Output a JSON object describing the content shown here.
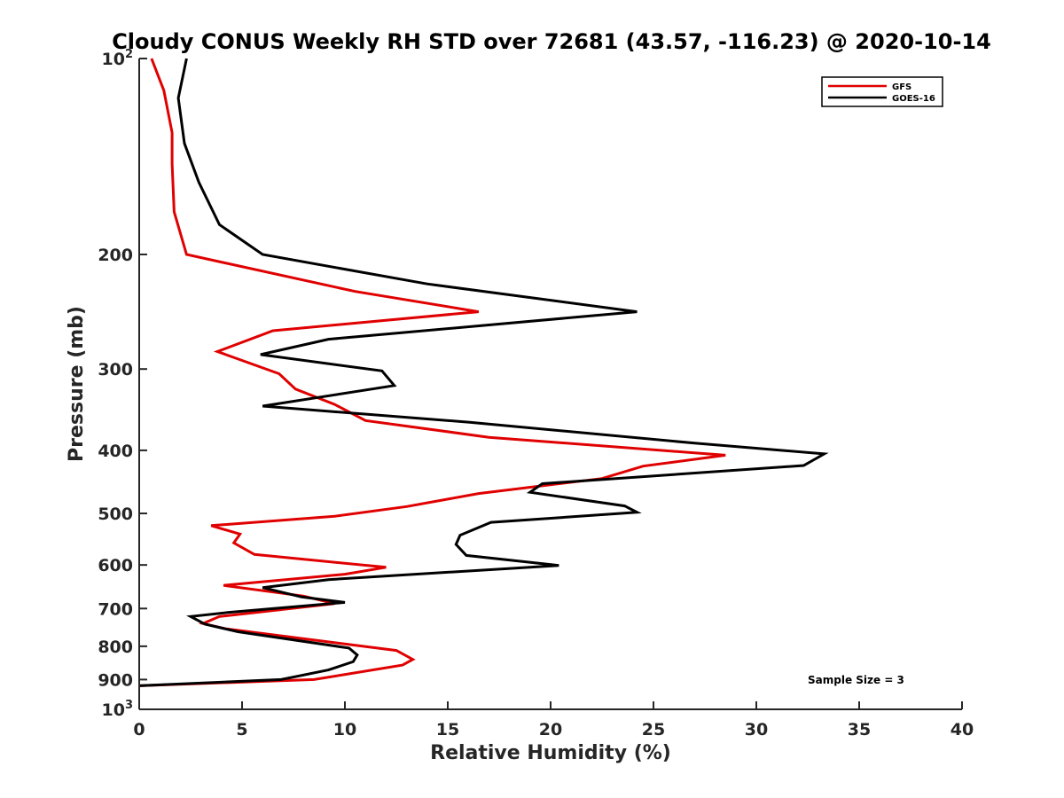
{
  "chart_data": {
    "type": "line",
    "title": "Cloudy CONUS Weekly RH STD over 72681 (43.57, -116.23) @ 2020-10-14",
    "xlabel": "Relative Humidity (%)",
    "ylabel": "Pressure (mb)",
    "xlim": [
      0,
      40
    ],
    "ylim": [
      100,
      1000
    ],
    "yscale": "log",
    "y_reversed": true,
    "grid": false,
    "legend_position": "top-right",
    "x_ticks": [
      {
        "value": 0,
        "label": "0"
      },
      {
        "value": 5,
        "label": "5"
      },
      {
        "value": 10,
        "label": "10"
      },
      {
        "value": 15,
        "label": "15"
      },
      {
        "value": 20,
        "label": "20"
      },
      {
        "value": 25,
        "label": "25"
      },
      {
        "value": 30,
        "label": "30"
      },
      {
        "value": 35,
        "label": "35"
      },
      {
        "value": 40,
        "label": "40"
      }
    ],
    "y_ticks": [
      {
        "value": 100,
        "base": "10",
        "exp": "2"
      },
      {
        "value": 200,
        "label": "200"
      },
      {
        "value": 300,
        "label": "300"
      },
      {
        "value": 400,
        "label": "400"
      },
      {
        "value": 500,
        "label": "500"
      },
      {
        "value": 600,
        "label": "600"
      },
      {
        "value": 700,
        "label": "700"
      },
      {
        "value": 800,
        "label": "800"
      },
      {
        "value": 900,
        "label": "900"
      },
      {
        "value": 1000,
        "base": "10",
        "exp": "3"
      }
    ],
    "series": [
      {
        "name": "GFS",
        "color": "#e00000",
        "points": [
          [
            0.6,
            100
          ],
          [
            1.2,
            112
          ],
          [
            1.6,
            130
          ],
          [
            1.6,
            145
          ],
          [
            1.7,
            172
          ],
          [
            2.3,
            200
          ],
          [
            10.5,
            228
          ],
          [
            16.5,
            245
          ],
          [
            6.5,
            262
          ],
          [
            3.8,
            282
          ],
          [
            6.8,
            305
          ],
          [
            7.6,
            322
          ],
          [
            9.5,
            340
          ],
          [
            11.0,
            360
          ],
          [
            17.0,
            382
          ],
          [
            28.5,
            407
          ],
          [
            24.5,
            423
          ],
          [
            22.5,
            442
          ],
          [
            16.5,
            466
          ],
          [
            13.0,
            488
          ],
          [
            9.5,
            505
          ],
          [
            3.5,
            522
          ],
          [
            4.9,
            538
          ],
          [
            4.6,
            555
          ],
          [
            5.6,
            578
          ],
          [
            12.0,
            605
          ],
          [
            10.0,
            620
          ],
          [
            4.1,
            645
          ],
          [
            8.0,
            670
          ],
          [
            9.5,
            688
          ],
          [
            3.9,
            720
          ],
          [
            3.1,
            738
          ],
          [
            4.2,
            752
          ],
          [
            12.5,
            812
          ],
          [
            13.3,
            838
          ],
          [
            12.8,
            855
          ],
          [
            8.5,
            900
          ],
          [
            0,
            920
          ]
        ]
      },
      {
        "name": "GOES-16",
        "color": "#000000",
        "points": [
          [
            2.3,
            100
          ],
          [
            1.9,
            115
          ],
          [
            2.2,
            135
          ],
          [
            2.9,
            155
          ],
          [
            3.9,
            180
          ],
          [
            6.0,
            200
          ],
          [
            14.0,
            222
          ],
          [
            24.2,
            245
          ],
          [
            9.2,
            270
          ],
          [
            5.9,
            285
          ],
          [
            11.8,
            302
          ],
          [
            12.4,
            318
          ],
          [
            6.0,
            342
          ],
          [
            16.0,
            362
          ],
          [
            27.0,
            390
          ],
          [
            33.3,
            405
          ],
          [
            32.3,
            422
          ],
          [
            19.6,
            450
          ],
          [
            19.0,
            464
          ],
          [
            23.6,
            487
          ],
          [
            24.2,
            498
          ],
          [
            17.1,
            516
          ],
          [
            15.6,
            540
          ],
          [
            15.4,
            558
          ],
          [
            15.9,
            580
          ],
          [
            20.4,
            601
          ],
          [
            9.2,
            632
          ],
          [
            6.0,
            650
          ],
          [
            7.9,
            672
          ],
          [
            10.0,
            685
          ],
          [
            4.3,
            710
          ],
          [
            2.5,
            720
          ],
          [
            3.2,
            740
          ],
          [
            4.8,
            760
          ],
          [
            10.2,
            805
          ],
          [
            10.6,
            825
          ],
          [
            10.4,
            845
          ],
          [
            9.2,
            870
          ],
          [
            6.9,
            900
          ],
          [
            0,
            920
          ]
        ]
      }
    ],
    "annotations": [
      {
        "text": "Sample Size = 3"
      }
    ]
  }
}
